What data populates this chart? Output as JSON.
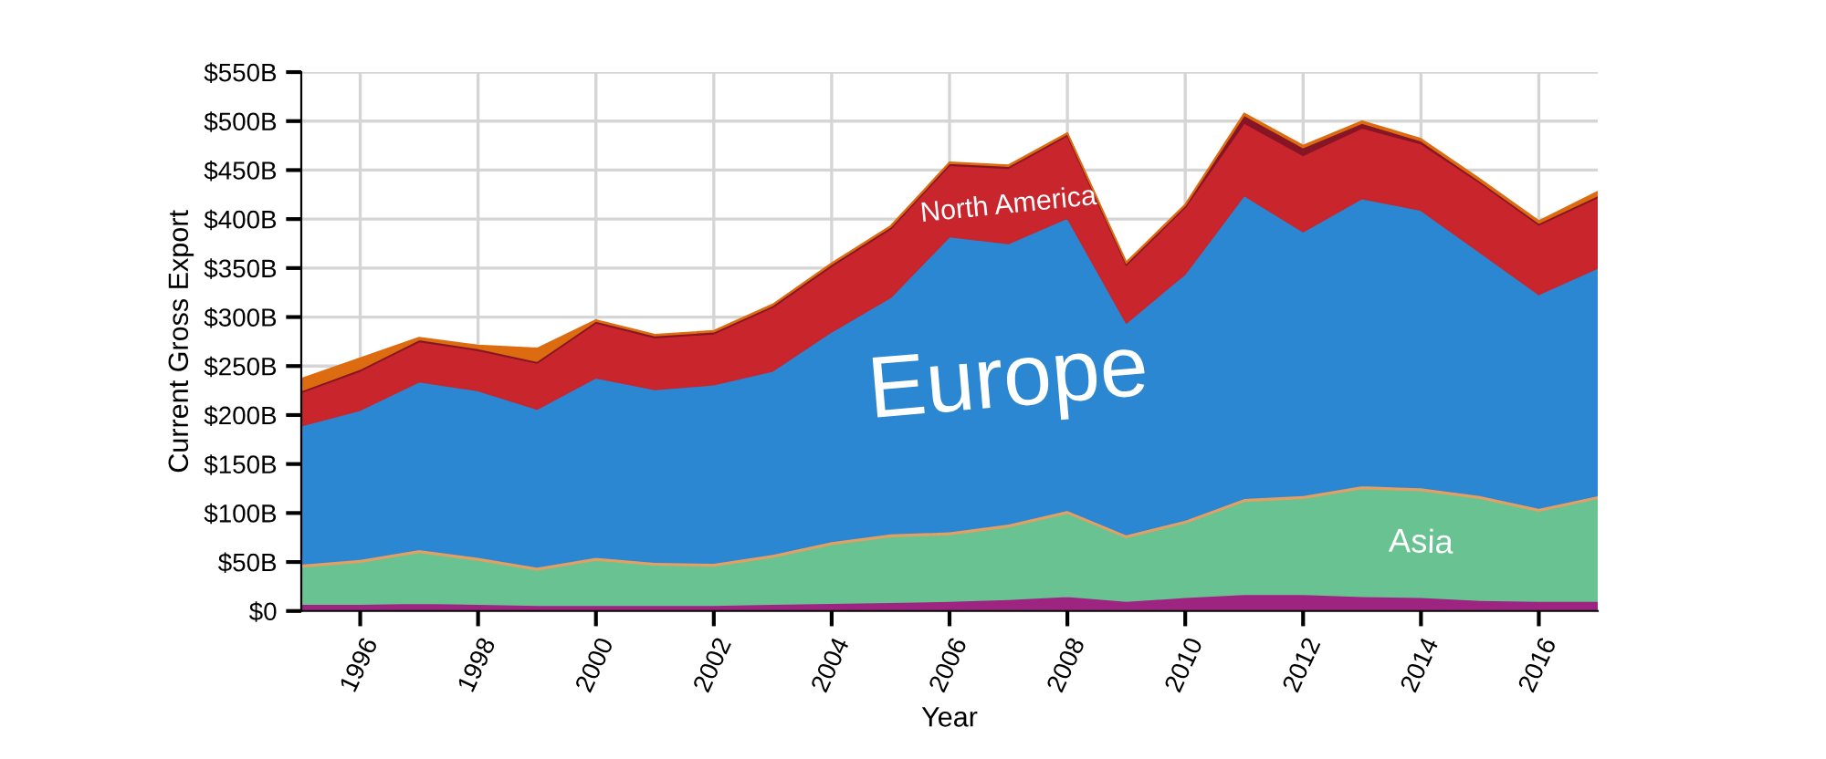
{
  "chart_data": {
    "type": "area",
    "stacked": true,
    "xlabel": "Year",
    "ylabel": "Current Gross Export",
    "x": [
      1995,
      1996,
      1997,
      1998,
      1999,
      2000,
      2001,
      2002,
      2003,
      2004,
      2005,
      2006,
      2007,
      2008,
      2009,
      2010,
      2011,
      2012,
      2013,
      2014,
      2015,
      2016,
      2017
    ],
    "series": [
      {
        "color": "#9e2482",
        "values": [
          7,
          7,
          8,
          7,
          6,
          6,
          6,
          6,
          7,
          8,
          9,
          10,
          12,
          15,
          10,
          14,
          17,
          17,
          15,
          14,
          11,
          10,
          10
        ]
      },
      {
        "name": "Asia",
        "color": "#69c291",
        "values": [
          38,
          43,
          52,
          45,
          36,
          46,
          41,
          40,
          48,
          60,
          67,
          68,
          74,
          85,
          65,
          76,
          95,
          98,
          110,
          109,
          104,
          92,
          105
        ]
      },
      {
        "color": "#e3a062",
        "values": [
          3,
          3,
          3,
          3,
          3,
          3,
          3,
          3,
          3,
          3,
          3,
          3,
          3,
          3,
          3,
          3,
          3,
          3,
          3,
          3,
          3,
          3,
          3
        ]
      },
      {
        "name": "Europe",
        "color": "#2b87d2",
        "values": [
          141,
          152,
          171,
          170,
          161,
          183,
          176,
          182,
          187,
          214,
          241,
          301,
          286,
          298,
          216,
          251,
          309,
          269,
          293,
          283,
          248,
          218,
          232
        ]
      },
      {
        "name": "North America",
        "color": "#c8252c",
        "values": [
          34,
          40,
          41,
          41,
          47,
          56,
          53,
          52,
          65,
          67,
          70,
          73,
          77,
          84,
          59,
          68,
          74,
          78,
          72,
          68,
          71,
          71,
          72
        ]
      },
      {
        "color": "#861526",
        "values": [
          2,
          2,
          2,
          2,
          2,
          2,
          2,
          2,
          2,
          2,
          2,
          2,
          2,
          2,
          2,
          2,
          8,
          8,
          5,
          3,
          2,
          2,
          2
        ]
      },
      {
        "color": "#dd6b10",
        "values": [
          12,
          11,
          2,
          3,
          13,
          1,
          1,
          1,
          1,
          1,
          1,
          1,
          1,
          1,
          1,
          1,
          2,
          2,
          2,
          2,
          2,
          2,
          4
        ]
      }
    ],
    "xlim": [
      1995,
      2017
    ],
    "xticks": [
      1996,
      1998,
      2000,
      2002,
      2004,
      2006,
      2008,
      2010,
      2012,
      2014,
      2016
    ],
    "ylim": [
      0,
      550
    ],
    "yticks": [
      {
        "value": 0,
        "label": "$0"
      },
      {
        "value": 50,
        "label": "$50B"
      },
      {
        "value": 100,
        "label": "$100B"
      },
      {
        "value": 150,
        "label": "$150B"
      },
      {
        "value": 200,
        "label": "$200B"
      },
      {
        "value": 250,
        "label": "$250B"
      },
      {
        "value": 300,
        "label": "$300B"
      },
      {
        "value": 350,
        "label": "$350B"
      },
      {
        "value": 400,
        "label": "$400B"
      },
      {
        "value": 450,
        "label": "$450B"
      },
      {
        "value": 500,
        "label": "$500B"
      },
      {
        "value": 550,
        "label": "$550B"
      }
    ],
    "grid": true,
    "legend": false
  }
}
